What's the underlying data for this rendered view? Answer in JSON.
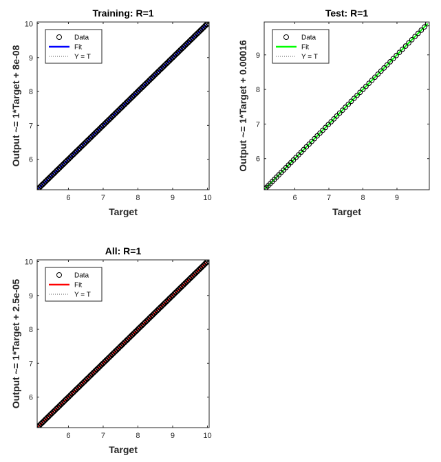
{
  "colors": {
    "data_marker": "#000000",
    "training_fit": "#0000ff",
    "test_fit": "#00ff00",
    "all_fit": "#ff0000",
    "identity": "#555555",
    "axes": "#262626",
    "background": "#ffffff"
  },
  "chart_data": [
    {
      "type": "scatter",
      "panel": "training",
      "title": "Training: R=1",
      "xlabel": "Target",
      "ylabel": "Output ~= 1*Target + 8e-08",
      "xlim": [
        5.1,
        10.05
      ],
      "ylim": [
        5.1,
        10.05
      ],
      "xticks": [
        6,
        7,
        8,
        9,
        10
      ],
      "yticks": [
        6,
        7,
        8,
        9,
        10
      ],
      "legend": [
        "Data",
        "Fit",
        "Y = T"
      ],
      "legend_placement": "top-left",
      "grid": false,
      "fit": {
        "slope": 1,
        "intercept": 8e-08
      },
      "data_range": [
        5.12,
        9.98
      ],
      "data_density": "dense",
      "fit_color_key": "training_fit"
    },
    {
      "type": "scatter",
      "panel": "test",
      "title": "Test: R=1",
      "xlabel": "Target",
      "ylabel": "Output ~= 1*Target + 0.00016",
      "xlim": [
        5.1,
        9.95
      ],
      "ylim": [
        5.1,
        9.95
      ],
      "xticks": [
        6,
        7,
        8,
        9
      ],
      "yticks": [
        6,
        7,
        8,
        9
      ],
      "legend": [
        "Data",
        "Fit",
        "Y = T"
      ],
      "legend_placement": "top-left",
      "grid": false,
      "fit": {
        "slope": 1,
        "intercept": 0.00016
      },
      "data_range": [
        5.12,
        9.9
      ],
      "data_density": "sparse",
      "fit_color_key": "test_fit"
    },
    {
      "type": "scatter",
      "panel": "all",
      "title": "All: R=1",
      "xlabel": "Target",
      "ylabel": "Output ~= 1*Target + 2.5e-05",
      "xlim": [
        5.1,
        10.05
      ],
      "ylim": [
        5.1,
        10.05
      ],
      "xticks": [
        6,
        7,
        8,
        9,
        10
      ],
      "yticks": [
        6,
        7,
        8,
        9,
        10
      ],
      "legend": [
        "Data",
        "Fit",
        "Y = T"
      ],
      "legend_placement": "top-left",
      "grid": false,
      "fit": {
        "slope": 1,
        "intercept": 2.5e-05
      },
      "data_range": [
        5.12,
        9.98
      ],
      "data_density": "dense",
      "fit_color_key": "all_fit"
    }
  ]
}
